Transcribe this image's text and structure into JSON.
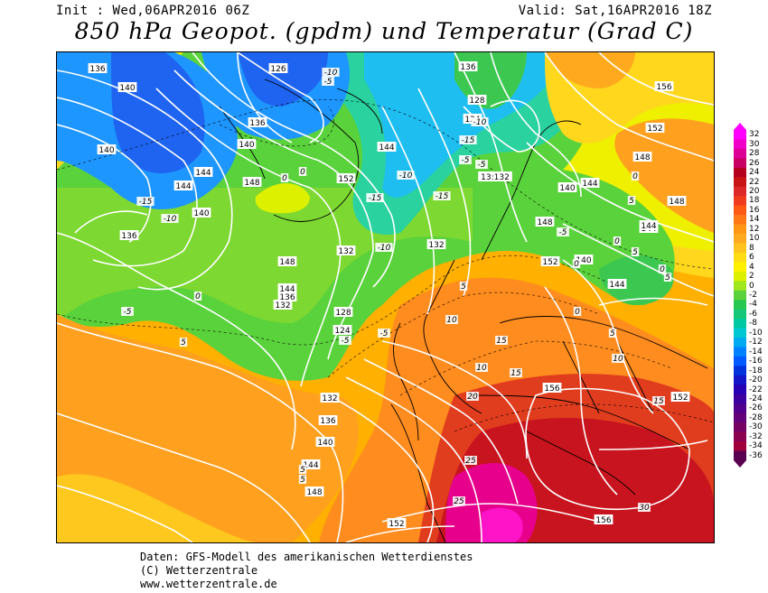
{
  "header": {
    "init": "Init : Wed,06APR2016 06Z",
    "valid": "Valid: Sat,16APR2016 18Z",
    "title": "850 hPa Geopot. (gpdm) und Temperatur (Grad C)"
  },
  "colorbar": {
    "labels": [
      "32",
      "30",
      "28",
      "26",
      "24",
      "22",
      "20",
      "18",
      "16",
      "14",
      "12",
      "10",
      "8",
      "6",
      "4",
      "2",
      "0",
      "-2",
      "-4",
      "-6",
      "-8",
      "-10",
      "-12",
      "-14",
      "-16",
      "-18",
      "-20",
      "-22",
      "-24",
      "-26",
      "-28",
      "-30",
      "-32",
      "-34",
      "-36"
    ],
    "colors": [
      "#ff00ff",
      "#f000c8",
      "#dc0096",
      "#c80064",
      "#b4001e",
      "#c81414",
      "#dc2828",
      "#f03c1e",
      "#ff5a14",
      "#ff7814",
      "#ff9614",
      "#ffaa1e",
      "#ffc31e",
      "#ffdc14",
      "#fff000",
      "#dcf000",
      "#a0e61e",
      "#5ad23c",
      "#28c850",
      "#14c878",
      "#00c8a0",
      "#00c8d2",
      "#00aaf0",
      "#0082ff",
      "#005aff",
      "#0032dc",
      "#1414c8",
      "#2800b4",
      "#3c00a0",
      "#50008c",
      "#640078",
      "#780064",
      "#8c0050",
      "#a0003c",
      "#5a0050"
    ]
  },
  "map": {
    "geopotential_labels": [
      "136",
      "126",
      "136",
      "140",
      "140",
      "144",
      "144",
      "148",
      "144",
      "140",
      "136",
      "132",
      "148",
      "144",
      "136",
      "132",
      "128",
      "124",
      "132",
      "136",
      "140",
      "144",
      "148",
      "152",
      "136",
      "128",
      "124",
      "13:132",
      "140",
      "148",
      "152",
      "140",
      "144",
      "144",
      "148",
      "156",
      "152",
      "148",
      "144",
      "152",
      "156",
      "156",
      "152",
      "132",
      "144",
      "140"
    ],
    "temperature_labels": [
      "-10",
      "-5",
      "-15",
      "-10",
      "-5",
      "0",
      "0",
      "-5",
      "-10",
      "-15",
      "-10",
      "-15",
      "-5",
      "-10",
      "-5",
      "0",
      "5",
      "5",
      "-15",
      "-5",
      "0",
      "-5",
      "0",
      "0",
      "0",
      "5",
      "10",
      "15",
      "10",
      "15",
      "20",
      "25",
      "25",
      "30",
      "5",
      "5",
      "5",
      "10",
      "15",
      "0",
      "5",
      "5"
    ]
  },
  "footer": {
    "line1": "Daten: GFS-Modell des amerikanischen Wetterdienstes",
    "line2": "(C) Wetterzentrale",
    "line3": "www.wetterzentrale.de"
  }
}
